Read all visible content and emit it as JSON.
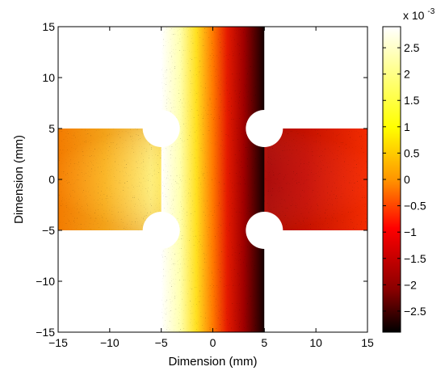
{
  "chart_data": {
    "type": "heatmap",
    "title": "",
    "xlabel": "Dimension (mm)",
    "ylabel": "Dimension (mm)",
    "xlim": [
      -15,
      15
    ],
    "ylim": [
      -15,
      15
    ],
    "x_ticks": [
      -15,
      -10,
      -5,
      0,
      5,
      10,
      15
    ],
    "y_ticks": [
      -15,
      -10,
      -5,
      0,
      5,
      10,
      15
    ],
    "grid": false,
    "shape": {
      "description": "cruciform specimen",
      "vertical_arm_x_range": [
        -5,
        5
      ],
      "horizontal_arm_y_range": [
        -5,
        5
      ],
      "notch_centers": [
        [
          -5,
          5
        ],
        [
          5,
          5
        ],
        [
          -5,
          -5
        ],
        [
          5,
          -5
        ]
      ],
      "notch_radius": 1.8
    },
    "colorbar": {
      "colormap": "hot",
      "range": [
        -0.0029,
        0.0029
      ],
      "exponent_label": "x 10",
      "exponent_value": "-3",
      "tick_values": [
        2.5,
        2,
        1.5,
        1,
        0.5,
        0,
        -0.5,
        -1,
        -1.5,
        -2,
        -2.5
      ],
      "tick_labels": [
        "2.5",
        "2",
        "1.5",
        "1",
        "0.5",
        "0",
        "−0.5",
        "−1",
        "−1.5",
        "−2",
        "−2.5"
      ]
    }
  }
}
